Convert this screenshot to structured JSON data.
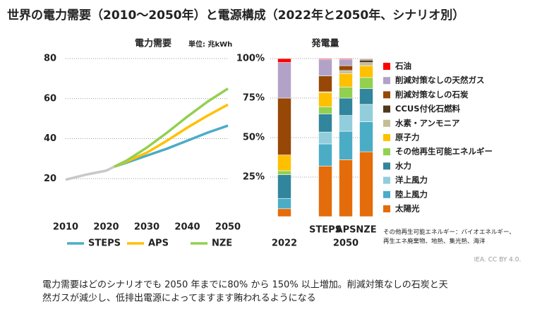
{
  "title": "世界の電力需要（2010～2050年）と電源構成（2022年と2050年、シナリオ別）",
  "chart_data": [
    {
      "type": "line",
      "title": "電力需要",
      "unit": "単位: 兆kWh",
      "x": [
        2010,
        2015,
        2020,
        2022,
        2025,
        2030,
        2035,
        2040,
        2045,
        2050
      ],
      "xlim": [
        2010,
        2050
      ],
      "xticks": [
        2010,
        2020,
        2030,
        2040,
        2050
      ],
      "ylim": [
        0,
        80
      ],
      "yticks": [
        20,
        40,
        60,
        80
      ],
      "grid": true,
      "series": [
        {
          "color": "#c8c8c8",
          "values": [
            19.5,
            22,
            24,
            26,
            null,
            null,
            null,
            null,
            null,
            null
          ]
        },
        {
          "name": "STEPS",
          "color": "#4bacc6",
          "values": [
            null,
            null,
            null,
            26,
            28,
            31.5,
            35,
            39,
            43,
            46.5
          ]
        },
        {
          "name": "APS",
          "color": "#ffc000",
          "values": [
            null,
            null,
            null,
            26,
            28.5,
            33,
            39,
            45.5,
            51.5,
            57
          ]
        },
        {
          "name": "NZE",
          "color": "#92d050",
          "values": [
            null,
            null,
            null,
            26,
            29,
            35.5,
            43,
            51,
            58.5,
            65
          ]
        }
      ]
    },
    {
      "type": "bar",
      "stacked": true,
      "title": "発電量",
      "categories": [
        "2022",
        "STEPS",
        "APS",
        "NZE"
      ],
      "group_label": "2050",
      "ylim": [
        0,
        100
      ],
      "yticks": [
        {
          "value": 25,
          "label": "25%"
        },
        {
          "value": 50,
          "label": "50%"
        },
        {
          "value": 75,
          "label": "75%"
        },
        {
          "value": 100,
          "label": "100%"
        }
      ],
      "grid": true,
      "series": [
        {
          "name": "太陽光",
          "color": "#e46c0a",
          "values": [
            5,
            32,
            36,
            41
          ]
        },
        {
          "name": "陸上風力",
          "color": "#4bacc6",
          "values": [
            6.5,
            14,
            18,
            19
          ]
        },
        {
          "name": "洋上風力",
          "color": "#92cddc",
          "values": [
            0,
            7.5,
            10,
            11
          ]
        },
        {
          "name": "水力",
          "color": "#31859c",
          "values": [
            15,
            11.5,
            11,
            10
          ]
        },
        {
          "name": "その他再生可能エネルギー",
          "color": "#92d050",
          "values": [
            2.5,
            4.5,
            7,
            7
          ]
        },
        {
          "name": "原子力",
          "color": "#ffc000",
          "values": [
            10,
            9,
            8.5,
            7.5
          ]
        },
        {
          "name": "水素・アンモニア",
          "color": "#c4bd97",
          "values": [
            0,
            0.5,
            1.5,
            2
          ]
        },
        {
          "name": "CCUS付化石燃料",
          "color": "#4f3a1e",
          "values": [
            0,
            0,
            0.5,
            1.5
          ]
        },
        {
          "name": "削減対策なしの石炭",
          "color": "#974706",
          "values": [
            36,
            10,
            3,
            0.5
          ]
        },
        {
          "name": "削減対策なしの天然ガス",
          "color": "#b2a2c7",
          "values": [
            22.5,
            10.5,
            4,
            0.5
          ]
        },
        {
          "name": "石油",
          "color": "#ff0000",
          "values": [
            2.5,
            0.5,
            0.5,
            0
          ]
        }
      ],
      "footnote": [
        "その他再生可能エネルギー：バイオエネルギー、",
        "再生エネ廃棄物、地熱、集光熱、海洋"
      ]
    }
  ],
  "source": "IEA. CC BY 4.0.",
  "caption": [
    "電力需要はどのシナリオでも 2050 年までに80% から 150% 以上増加。削減対策なしの石炭と天",
    "然ガスが減少し、低排出電源によってますます賄われるようになる"
  ]
}
